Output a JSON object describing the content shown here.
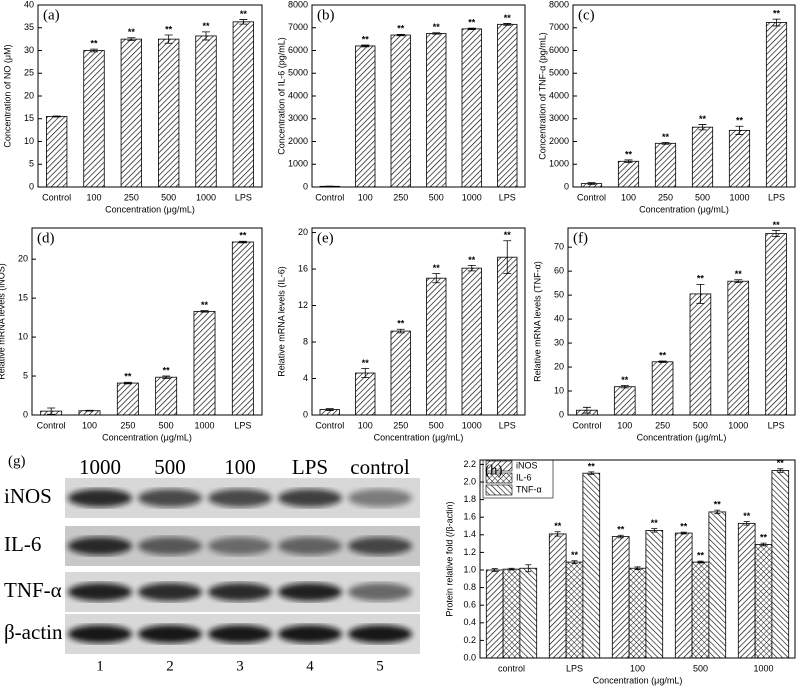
{
  "chart_data": [
    {
      "type": "bar",
      "panel": "(a)",
      "ylabel": "Concentration of NO (μM)",
      "xlabel": "Concentration (μg/mL)",
      "categories": [
        "Control",
        "100",
        "250",
        "500",
        "1000",
        "LPS"
      ],
      "values": [
        15.5,
        30,
        32.5,
        32.5,
        33.2,
        36.3
      ],
      "errors": [
        0.1,
        0.3,
        0.3,
        0.9,
        0.9,
        0.5
      ],
      "significance": [
        null,
        "**",
        "**",
        "**",
        "**",
        "**"
      ],
      "ylim": [
        0,
        40
      ],
      "yticks": [
        0,
        5,
        10,
        15,
        20,
        25,
        30,
        35,
        40
      ]
    },
    {
      "type": "bar",
      "panel": "(b)",
      "ylabel": "Concentration of IL-6 (pg/mL)",
      "categories": [
        "Control",
        "100",
        "250",
        "500",
        "1000",
        "LPS"
      ],
      "values": [
        30,
        6200,
        6680,
        6750,
        6950,
        7150
      ],
      "errors": [
        10,
        40,
        30,
        30,
        30,
        40
      ],
      "significance": [
        null,
        "**",
        "**",
        "**",
        "**",
        "**"
      ],
      "ylim": [
        0,
        8000
      ],
      "yticks": [
        0,
        1000,
        2000,
        3000,
        4000,
        5000,
        6000,
        7000,
        8000
      ]
    },
    {
      "type": "bar",
      "panel": "(c)",
      "ylabel": "Concentration of TNF-α (pg/mL)",
      "xlabel": "Concentration (μg/mL)",
      "categories": [
        "Control",
        "100",
        "250",
        "500",
        "1000",
        "LPS"
      ],
      "values": [
        150,
        1130,
        1920,
        2630,
        2490,
        7230
      ],
      "errors": [
        40,
        60,
        40,
        120,
        180,
        150
      ],
      "significance": [
        null,
        "**",
        "**",
        "**",
        "**",
        "**"
      ],
      "ylim": [
        0,
        8000
      ],
      "yticks": [
        0,
        1000,
        2000,
        3000,
        4000,
        5000,
        6000,
        7000,
        8000
      ]
    },
    {
      "type": "bar",
      "panel": "(d)",
      "ylabel": "Relative mRNA levels (iNOS)",
      "xlabel": "Concentration (μg/mL)",
      "categories": [
        "Control",
        "100",
        "250",
        "500",
        "1000",
        "LPS"
      ],
      "values": [
        0.5,
        0.55,
        4.1,
        4.85,
        13.3,
        22.2
      ],
      "errors": [
        0.4,
        0.05,
        0.1,
        0.15,
        0.1,
        0.1
      ],
      "significance": [
        null,
        null,
        "**",
        "**",
        "**",
        "**"
      ],
      "ylim": [
        0,
        24
      ],
      "yticks": [
        0,
        5,
        10,
        15,
        20
      ]
    },
    {
      "type": "bar",
      "panel": "(e)",
      "ylabel": "Relative mRNA levels (IL-6)",
      "xlabel": "Concentration (μg/mL)",
      "categories": [
        "Control",
        "100",
        "250",
        "500",
        "1000",
        "LPS"
      ],
      "values": [
        0.6,
        4.6,
        9.2,
        15.0,
        16.1,
        17.3
      ],
      "errors": [
        0.1,
        0.5,
        0.2,
        0.5,
        0.3,
        1.8
      ],
      "significance": [
        null,
        "**",
        "**",
        "**",
        "**",
        "**"
      ],
      "ylim": [
        0,
        20.5
      ],
      "yticks": [
        0,
        4,
        8,
        12,
        16,
        20
      ]
    },
    {
      "type": "bar",
      "panel": "(f)",
      "ylabel": "Relative mRNA levels (TNF-α)",
      "xlabel": "Concentration (μg/mL)",
      "categories": [
        "Control",
        "100",
        "250",
        "500",
        "1000",
        "LPS"
      ],
      "values": [
        2,
        11.8,
        22.2,
        50.5,
        55.8,
        75.7
      ],
      "errors": [
        1.2,
        0.5,
        0.3,
        4,
        0.6,
        1.3
      ],
      "significance": [
        null,
        "**",
        "**",
        "**",
        "**",
        "**"
      ],
      "ylim": [
        0,
        78
      ],
      "yticks": [
        0,
        10,
        20,
        30,
        40,
        50,
        60,
        70
      ]
    },
    {
      "type": "grouped",
      "panel": "(h)",
      "ylabel": "Protein relative fold (/β-actin)",
      "xlabel": "Concentration (μg/mL)",
      "categories": [
        "control",
        "LPS",
        "100",
        "500",
        "1000"
      ],
      "series": [
        {
          "name": "iNOS",
          "values": [
            1.0,
            1.41,
            1.38,
            1.42,
            1.53
          ],
          "errors": [
            0.015,
            0.025,
            0.015,
            0.01,
            0.02
          ],
          "significance": [
            null,
            "**",
            "**",
            "**",
            "**"
          ]
        },
        {
          "name": "IL-6",
          "values": [
            1.01,
            1.09,
            1.02,
            1.09,
            1.29
          ],
          "errors": [
            0.01,
            0.015,
            0.015,
            0.01,
            0.015
          ],
          "significance": [
            null,
            "**",
            null,
            "**",
            "**"
          ]
        },
        {
          "name": "TNF-α",
          "values": [
            1.02,
            2.1,
            1.45,
            1.66,
            2.13
          ],
          "errors": [
            0.04,
            0.015,
            0.02,
            0.02,
            0.02
          ],
          "significance": [
            null,
            "**",
            "**",
            "**",
            "**"
          ]
        }
      ],
      "ylim": [
        0,
        2.25
      ],
      "yticks": [
        {
          "value": 0,
          "label": "0.0"
        },
        0.2,
        0.4,
        0.6,
        0.8,
        {
          "value": 1,
          "label": "1.0"
        },
        1.2,
        1.4,
        1.6,
        1.8,
        {
          "value": 2,
          "label": "2.0"
        },
        2.2
      ]
    }
  ],
  "blot": {
    "panel": "(g)",
    "lanes": [
      "1000",
      "500",
      "100",
      "LPS",
      "control"
    ],
    "rows": [
      "iNOS",
      "IL-6",
      "TNF-α",
      "β-actin"
    ],
    "numbers": [
      "1",
      "2",
      "3",
      "4",
      "5"
    ]
  }
}
